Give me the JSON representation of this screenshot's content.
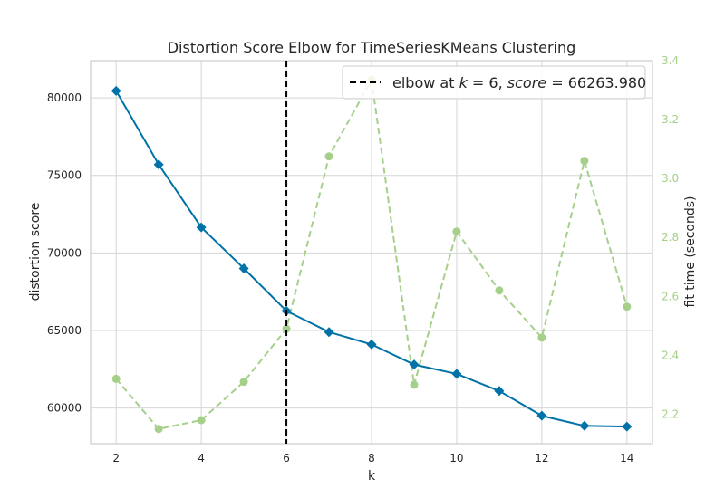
{
  "chart_data": {
    "type": "line",
    "title": "Distortion Score Elbow for TimeSeriesKMeans Clustering",
    "xlabel": "k",
    "ylabel": "distortion score",
    "y2label": "fit time (seconds)",
    "x": [
      2,
      3,
      4,
      5,
      6,
      7,
      8,
      9,
      10,
      11,
      12,
      13,
      14
    ],
    "xlim": [
      1.4,
      14.6
    ],
    "ylim": [
      57700,
      82400
    ],
    "y2lim": [
      2.1,
      3.4
    ],
    "xticks": [
      2,
      4,
      6,
      8,
      10,
      12,
      14
    ],
    "yticks": [
      60000,
      65000,
      70000,
      75000,
      80000
    ],
    "y2ticks": [
      "2.2",
      "2.4",
      "2.6",
      "2.8",
      "3.0",
      "3.2",
      "3.4"
    ],
    "grid": true,
    "legend_position": "top-right",
    "series": [
      {
        "name": "distortion score",
        "axis": "left",
        "color": "#0072a8",
        "marker": "diamond",
        "values": [
          80450,
          75700,
          71650,
          69000,
          66263.98,
          64900,
          64100,
          62800,
          62200,
          61100,
          59500,
          58850,
          58800
        ]
      },
      {
        "name": "fit time (seconds)",
        "axis": "right",
        "color": "#a6d08a",
        "marker": "circle",
        "linestyle": "dashed",
        "values": [
          2.32,
          2.15,
          2.18,
          2.31,
          2.49,
          3.075,
          3.335,
          2.3,
          2.82,
          2.62,
          2.46,
          3.06,
          2.565
        ]
      }
    ],
    "elbow": {
      "k": 6,
      "label_prefix": "elbow at ",
      "k_symbol": "k",
      "equals_k": " = 6, ",
      "score_symbol": "score",
      "equals_score": " = 66263.980"
    }
  }
}
